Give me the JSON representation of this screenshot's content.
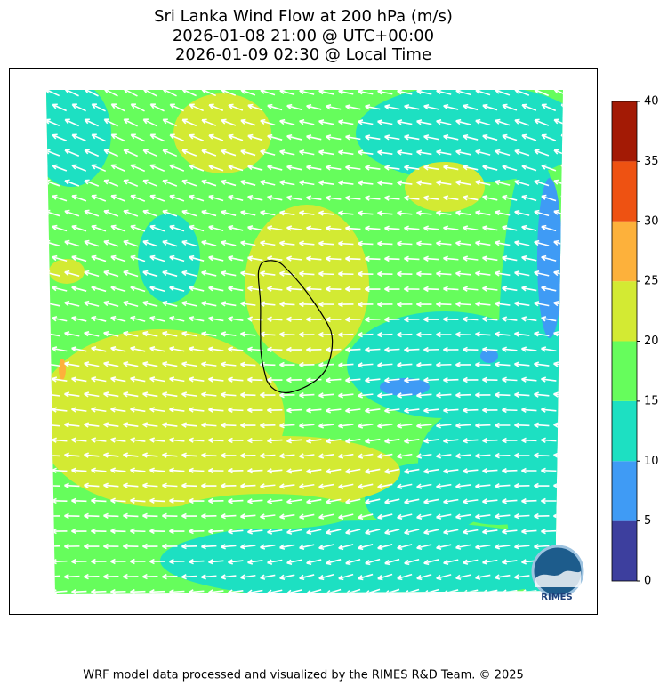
{
  "header": {
    "title_lines": [
      "Sri Lanka Wind Flow at 200 hPa (m/s)",
      "2026-01-08 21:00 @ UTC+00:00",
      "2026-01-09 02:30 @ Local Time"
    ]
  },
  "colorbar": {
    "lim": [
      0,
      40
    ],
    "ticks": [
      0,
      5,
      10,
      15,
      20,
      25,
      30,
      35,
      40
    ],
    "colors": [
      "#3d3f9e",
      "#3f9bf5",
      "#1de0c2",
      "#66fd5c",
      "#d3ea33",
      "#fdb13b",
      "#ee5212",
      "#a31a05"
    ]
  },
  "logo": "RIMES",
  "footer": "WRF model data processed and visualized by the RIMES R&D Team. © 2025"
}
